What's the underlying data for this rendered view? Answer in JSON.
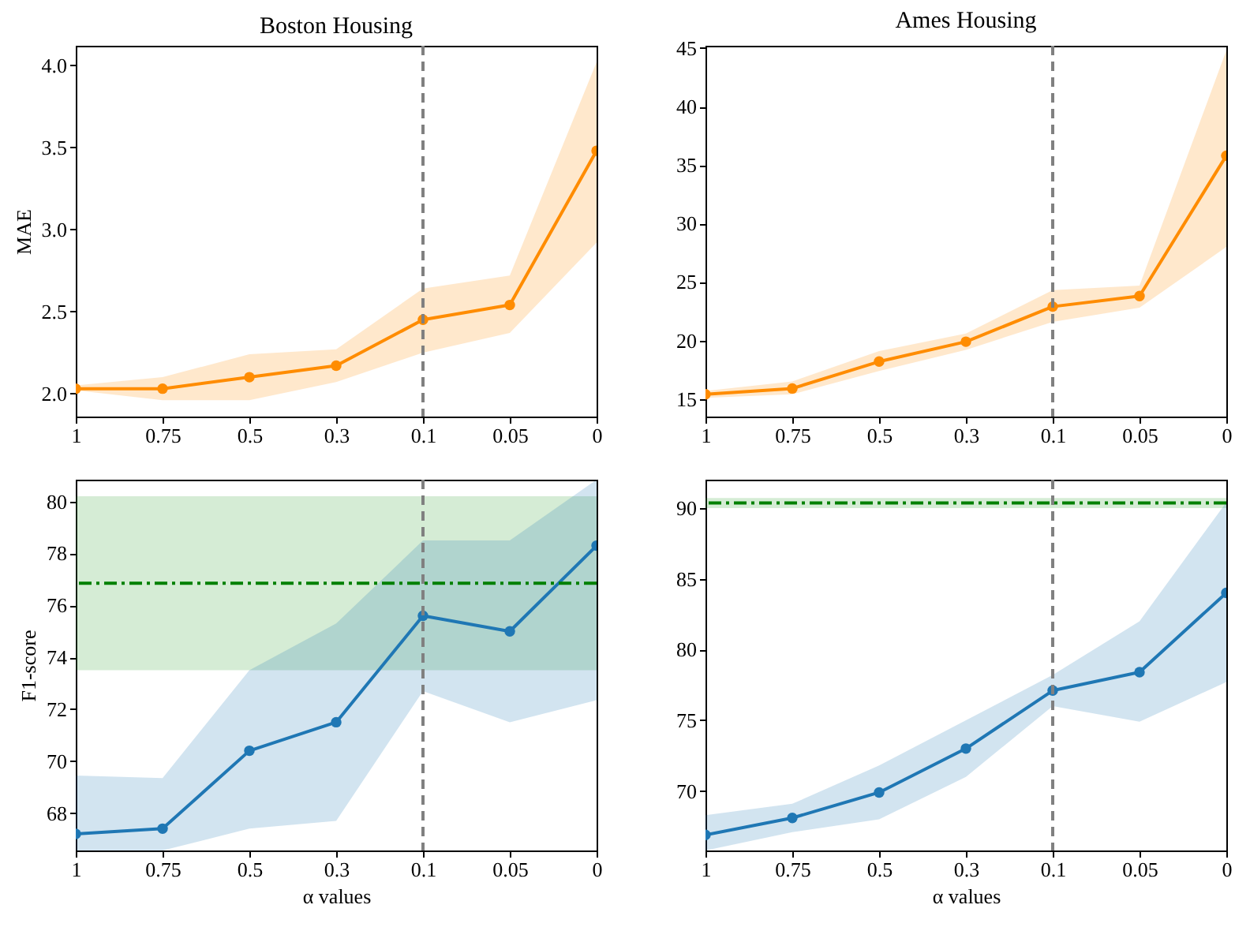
{
  "chart_data": [
    {
      "type": "line",
      "title": "Boston Housing",
      "ylabel": "MAE",
      "categories": [
        "1",
        "0.75",
        "0.5",
        "0.3",
        "0.1",
        "0.05",
        "0"
      ],
      "marker": "circle",
      "line_style": "solid",
      "series": [
        {
          "color": "#ff8c00",
          "values": [
            2.03,
            2.03,
            2.1,
            2.17,
            2.45,
            2.54,
            3.48
          ],
          "lower": [
            2.02,
            1.96,
            1.96,
            2.07,
            2.25,
            2.37,
            2.92
          ],
          "upper": [
            2.05,
            2.1,
            2.24,
            2.27,
            2.64,
            2.72,
            4.02
          ]
        }
      ],
      "ylim": [
        1.86,
        4.12
      ],
      "yticks": [
        {
          "value": 2,
          "label": "2.0"
        },
        2.5,
        {
          "value": 3,
          "label": "3.0"
        },
        3.5,
        {
          "value": 4,
          "label": "4.0"
        }
      ],
      "ref_lines": [
        {
          "axis": "x",
          "value": "0.1",
          "color": "#808080",
          "line_style": "dashed"
        }
      ]
    },
    {
      "type": "line",
      "title": "Ames Housing",
      "categories": [
        "1",
        "0.75",
        "0.5",
        "0.3",
        "0.1",
        "0.05",
        "0"
      ],
      "marker": "circle",
      "line_style": "solid",
      "series": [
        {
          "color": "#ff8c00",
          "values": [
            15.4,
            15.9,
            18.2,
            19.9,
            22.9,
            23.8,
            35.8
          ],
          "lower": [
            15.1,
            15.4,
            17.4,
            19.2,
            21.6,
            22.8,
            28
          ],
          "upper": [
            15.7,
            16.5,
            19.1,
            20.6,
            24.3,
            24.7,
            44.8
          ]
        }
      ],
      "ylim": [
        13.5,
        45.2
      ],
      "yticks": [
        15,
        20,
        25,
        30,
        35,
        40,
        45
      ],
      "ref_lines": [
        {
          "axis": "x",
          "value": "0.1",
          "color": "#808080",
          "line_style": "dashed"
        }
      ]
    },
    {
      "type": "line",
      "xlabel": "α values",
      "ylabel": "F1-score",
      "categories": [
        "1",
        "0.75",
        "0.5",
        "0.3",
        "0.1",
        "0.05",
        "0"
      ],
      "marker": "circle",
      "line_style": "solid",
      "series": [
        {
          "color": "#1f77b4",
          "values": [
            67.2,
            67.4,
            70.4,
            71.5,
            75.6,
            75.0,
            78.3
          ],
          "lower": [
            66.56,
            66.56,
            67.4,
            67.7,
            72.7,
            71.5,
            72.35
          ],
          "upper": [
            69.45,
            69.35,
            73.5,
            75.3,
            78.5,
            78.5,
            80.84
          ]
        }
      ],
      "ylim": [
        66.56,
        80.84
      ],
      "yticks": [
        68,
        70,
        72,
        74,
        76,
        78,
        80
      ],
      "ref_lines": [
        {
          "axis": "x",
          "value": "0.1",
          "color": "#808080",
          "line_style": "dashed"
        },
        {
          "axis": "y",
          "value": 76.85,
          "color": "#008000",
          "line_style": "dashdot"
        }
      ],
      "bands": [
        {
          "axis": "y",
          "from": 73.5,
          "to": 80.2,
          "color": "#2ca02c"
        }
      ]
    },
    {
      "type": "line",
      "xlabel": "α values",
      "categories": [
        "1",
        "0.75",
        "0.5",
        "0.3",
        "0.1",
        "0.05",
        "0"
      ],
      "marker": "circle",
      "line_style": "solid",
      "series": [
        {
          "color": "#1f77b4",
          "values": [
            66.9,
            68.1,
            69.9,
            73.0,
            77.1,
            78.4,
            84.0
          ],
          "lower": [
            65.8,
            67.1,
            68.0,
            71.0,
            76.0,
            74.9,
            77.7
          ],
          "upper": [
            68.3,
            69.1,
            71.8,
            75.0,
            78.2,
            82.0,
            90.4
          ]
        }
      ],
      "ylim": [
        65.8,
        92.0
      ],
      "yticks": [
        70,
        75,
        80,
        85,
        90
      ],
      "ref_lines": [
        {
          "axis": "x",
          "value": "0.1",
          "color": "#808080",
          "line_style": "dashed"
        },
        {
          "axis": "y",
          "value": 90.35,
          "color": "#008000",
          "line_style": "dashdot"
        }
      ],
      "bands": [
        {
          "axis": "y",
          "from": 90.0,
          "to": 90.7,
          "color": "#2ca02c"
        }
      ]
    }
  ]
}
